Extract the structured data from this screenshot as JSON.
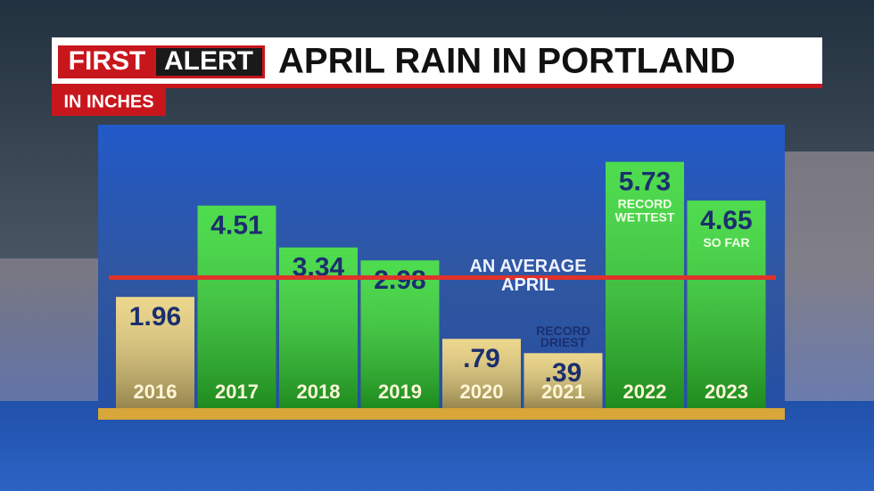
{
  "badge": [
    "FIRST",
    "ALERT"
  ],
  "chart_data": {
    "type": "bar",
    "title": "APRIL RAIN IN PORTLAND",
    "subtitle": "IN INCHES",
    "categories": [
      "2016",
      "2017",
      "2018",
      "2019",
      "2020",
      "2021",
      "2022",
      "2023"
    ],
    "values": [
      1.96,
      4.51,
      3.34,
      2.98,
      0.79,
      0.39,
      5.73,
      4.65
    ],
    "value_labels": [
      "1.96",
      "4.51",
      "3.34",
      "2.98",
      ".79",
      ".39",
      "5.73",
      "4.65"
    ],
    "colors": [
      "#e8cf78",
      "#2fd62f",
      "#2fd62f",
      "#2fd62f",
      "#e8cf78",
      "#e8cf78",
      "#2fd62f",
      "#2fd62f"
    ],
    "notes": [
      null,
      null,
      null,
      null,
      null,
      [
        "RECORD",
        "DRIEST"
      ],
      [
        "RECORD",
        "WETTEST"
      ],
      [
        "SO FAR"
      ]
    ],
    "average": 2.5,
    "average_color": "#e0322a",
    "average_label": [
      "AN AVERAGE",
      "APRIL"
    ]
  }
}
